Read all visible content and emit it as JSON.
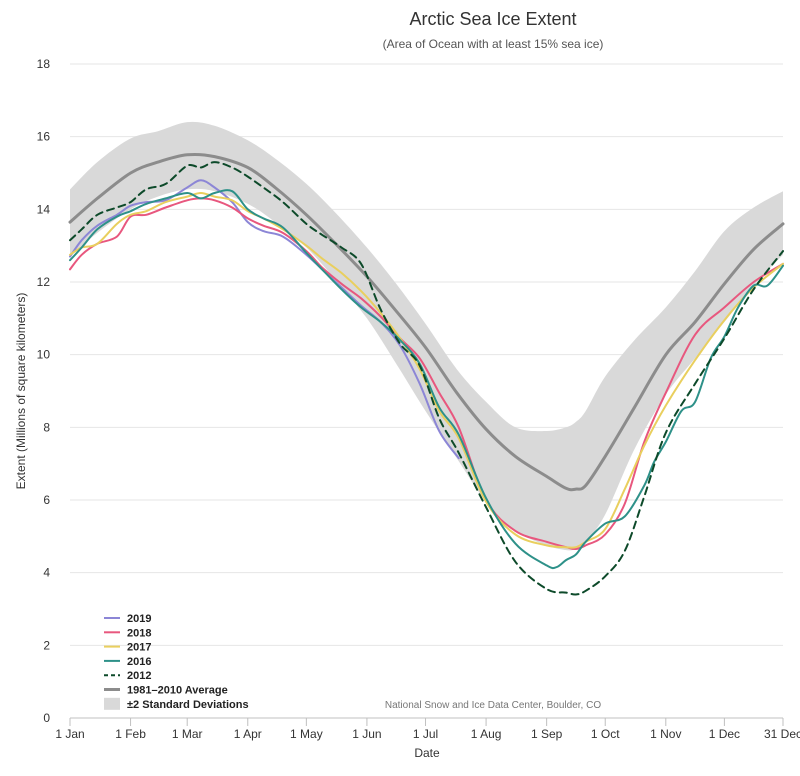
{
  "chart_data": {
    "type": "line",
    "title": "Arctic Sea Ice Extent",
    "subtitle": "(Area of Ocean with at least 15% sea ice)",
    "xlabel": "Date",
    "ylabel": "Extent (Millions of square kilometers)",
    "credit": "National Snow and Ice Data Center, Boulder, CO",
    "xlim": [
      1,
      366
    ],
    "ylim": [
      0,
      18
    ],
    "y_ticks": [
      0,
      2,
      4,
      6,
      8,
      10,
      12,
      14,
      16,
      18
    ],
    "x_ticks": [
      {
        "day": 1,
        "label": "1 Jan"
      },
      {
        "day": 32,
        "label": "1 Feb"
      },
      {
        "day": 61,
        "label": "1 Mar"
      },
      {
        "day": 92,
        "label": "1 Apr"
      },
      {
        "day": 122,
        "label": "1 May"
      },
      {
        "day": 153,
        "label": "1 Jun"
      },
      {
        "day": 183,
        "label": "1 Jul"
      },
      {
        "day": 214,
        "label": "1 Aug"
      },
      {
        "day": 245,
        "label": "1 Sep"
      },
      {
        "day": 275,
        "label": "1 Oct"
      },
      {
        "day": 306,
        "label": "1 Nov"
      },
      {
        "day": 336,
        "label": "1 Dec"
      },
      {
        "day": 366,
        "label": "31 Dec"
      }
    ],
    "grid": true,
    "legend_position": "bottom-left",
    "band": {
      "name": "±2 Standard Deviations",
      "color": "#d9d9d9",
      "x": [
        1,
        15,
        32,
        46,
        61,
        75,
        92,
        106,
        122,
        137,
        153,
        168,
        183,
        199,
        214,
        229,
        245,
        255,
        260,
        265,
        275,
        290,
        306,
        321,
        336,
        351,
        366
      ],
      "upper": [
        14.55,
        15.3,
        15.95,
        16.15,
        16.4,
        16.3,
        15.9,
        15.4,
        14.7,
        13.9,
        12.95,
        11.95,
        10.85,
        9.6,
        8.7,
        8.0,
        7.9,
        8.0,
        8.15,
        8.45,
        9.4,
        10.4,
        11.3,
        12.3,
        13.4,
        14.05,
        14.5
      ],
      "lower": [
        12.7,
        13.35,
        14.0,
        14.35,
        14.55,
        14.5,
        14.15,
        13.65,
        12.95,
        12.05,
        11.0,
        9.75,
        8.45,
        7.15,
        5.95,
        5.15,
        4.75,
        4.62,
        4.65,
        4.85,
        5.6,
        7.4,
        8.9,
        9.9,
        10.9,
        11.9,
        12.75
      ]
    },
    "series": [
      {
        "name": "2019",
        "color": "#8c86d6",
        "dash": "solid",
        "x": [
          1,
          7,
          15,
          25,
          32,
          40,
          50,
          61,
          68,
          75,
          84,
          92,
          100,
          110,
          122,
          130,
          140,
          150,
          160,
          170,
          180,
          190,
          200
        ],
        "values": [
          12.7,
          13.15,
          13.55,
          13.85,
          14.1,
          14.2,
          14.25,
          14.6,
          14.8,
          14.6,
          14.2,
          13.65,
          13.4,
          13.25,
          12.75,
          12.35,
          11.85,
          11.35,
          10.9,
          10.25,
          9.2,
          7.9,
          7.15
        ]
      },
      {
        "name": "2018",
        "color": "#e8577e",
        "dash": "solid",
        "x": [
          1,
          7,
          15,
          25,
          32,
          40,
          50,
          61,
          68,
          75,
          84,
          92,
          100,
          110,
          122,
          130,
          140,
          150,
          160,
          170,
          180,
          190,
          200,
          214,
          229,
          245,
          255,
          260,
          265,
          275,
          285,
          295,
          306,
          321,
          336,
          351,
          366
        ],
        "values": [
          12.35,
          12.75,
          13.05,
          13.25,
          13.8,
          13.85,
          14.05,
          14.25,
          14.3,
          14.25,
          14.05,
          13.75,
          13.55,
          13.35,
          12.85,
          12.4,
          11.95,
          11.55,
          11.05,
          10.45,
          9.9,
          8.95,
          8.0,
          6.0,
          5.15,
          4.85,
          4.7,
          4.65,
          4.75,
          5.05,
          5.9,
          7.6,
          8.95,
          10.55,
          11.3,
          12.0,
          12.5
        ]
      },
      {
        "name": "2017",
        "color": "#e9cf5e",
        "dash": "solid",
        "x": [
          1,
          7,
          15,
          25,
          32,
          40,
          50,
          61,
          68,
          75,
          84,
          92,
          100,
          110,
          122,
          130,
          140,
          150,
          160,
          170,
          180,
          190,
          200,
          214,
          229,
          245,
          255,
          260,
          265,
          275,
          285,
          295,
          306,
          321,
          336,
          351,
          366
        ],
        "values": [
          12.75,
          12.95,
          13.05,
          13.6,
          13.85,
          13.95,
          14.2,
          14.35,
          14.45,
          14.35,
          14.25,
          13.95,
          13.75,
          13.45,
          13.0,
          12.65,
          12.25,
          11.75,
          11.15,
          10.45,
          9.6,
          8.45,
          7.7,
          5.95,
          5.05,
          4.75,
          4.7,
          4.7,
          4.85,
          5.2,
          6.3,
          7.5,
          8.6,
          9.85,
          10.95,
          11.85,
          12.5
        ]
      },
      {
        "name": "2016",
        "color": "#2e9189",
        "dash": "solid",
        "x": [
          1,
          7,
          15,
          25,
          32,
          40,
          50,
          61,
          68,
          75,
          84,
          92,
          100,
          110,
          122,
          130,
          140,
          150,
          160,
          170,
          180,
          190,
          200,
          214,
          229,
          245,
          250,
          255,
          260,
          265,
          275,
          285,
          295,
          300,
          306,
          314,
          321,
          329,
          336,
          343,
          351,
          358,
          366
        ],
        "values": [
          12.6,
          12.95,
          13.45,
          13.8,
          13.95,
          14.15,
          14.3,
          14.45,
          14.3,
          14.45,
          14.5,
          14.0,
          13.75,
          13.5,
          12.8,
          12.35,
          11.8,
          11.3,
          10.9,
          10.4,
          9.75,
          8.55,
          7.8,
          6.05,
          4.8,
          4.2,
          4.15,
          4.35,
          4.5,
          4.85,
          5.35,
          5.55,
          6.4,
          7.05,
          7.6,
          8.45,
          8.7,
          9.9,
          10.5,
          11.3,
          11.9,
          11.9,
          12.45
        ]
      },
      {
        "name": "2012",
        "color": "#0d4a2a",
        "dash": "dashed",
        "x": [
          1,
          7,
          15,
          25,
          32,
          40,
          50,
          61,
          68,
          75,
          84,
          92,
          100,
          110,
          122,
          130,
          140,
          150,
          160,
          170,
          180,
          190,
          200,
          214,
          229,
          245,
          255,
          260,
          265,
          275,
          285,
          295,
          306,
          321,
          336,
          351,
          366
        ],
        "values": [
          13.15,
          13.45,
          13.85,
          14.05,
          14.2,
          14.55,
          14.7,
          15.2,
          15.15,
          15.3,
          15.15,
          14.9,
          14.6,
          14.2,
          13.6,
          13.3,
          12.95,
          12.5,
          11.25,
          10.3,
          9.7,
          8.25,
          7.3,
          5.8,
          4.3,
          3.55,
          3.45,
          3.4,
          3.5,
          3.9,
          4.6,
          6.1,
          7.85,
          9.2,
          10.45,
          11.8,
          12.85
        ]
      },
      {
        "name": "1981–2010 Average",
        "color": "#8c8c8c",
        "dash": "solid",
        "width": 3,
        "x": [
          1,
          15,
          32,
          46,
          61,
          75,
          92,
          106,
          122,
          137,
          153,
          168,
          183,
          199,
          214,
          229,
          245,
          255,
          260,
          265,
          275,
          290,
          306,
          321,
          336,
          351,
          366
        ],
        "values": [
          13.65,
          14.3,
          15.0,
          15.3,
          15.5,
          15.45,
          15.15,
          14.6,
          13.85,
          13.05,
          12.15,
          11.2,
          10.2,
          8.95,
          7.95,
          7.2,
          6.65,
          6.32,
          6.3,
          6.4,
          7.2,
          8.55,
          10.0,
          10.9,
          11.95,
          12.9,
          13.6
        ]
      }
    ]
  }
}
